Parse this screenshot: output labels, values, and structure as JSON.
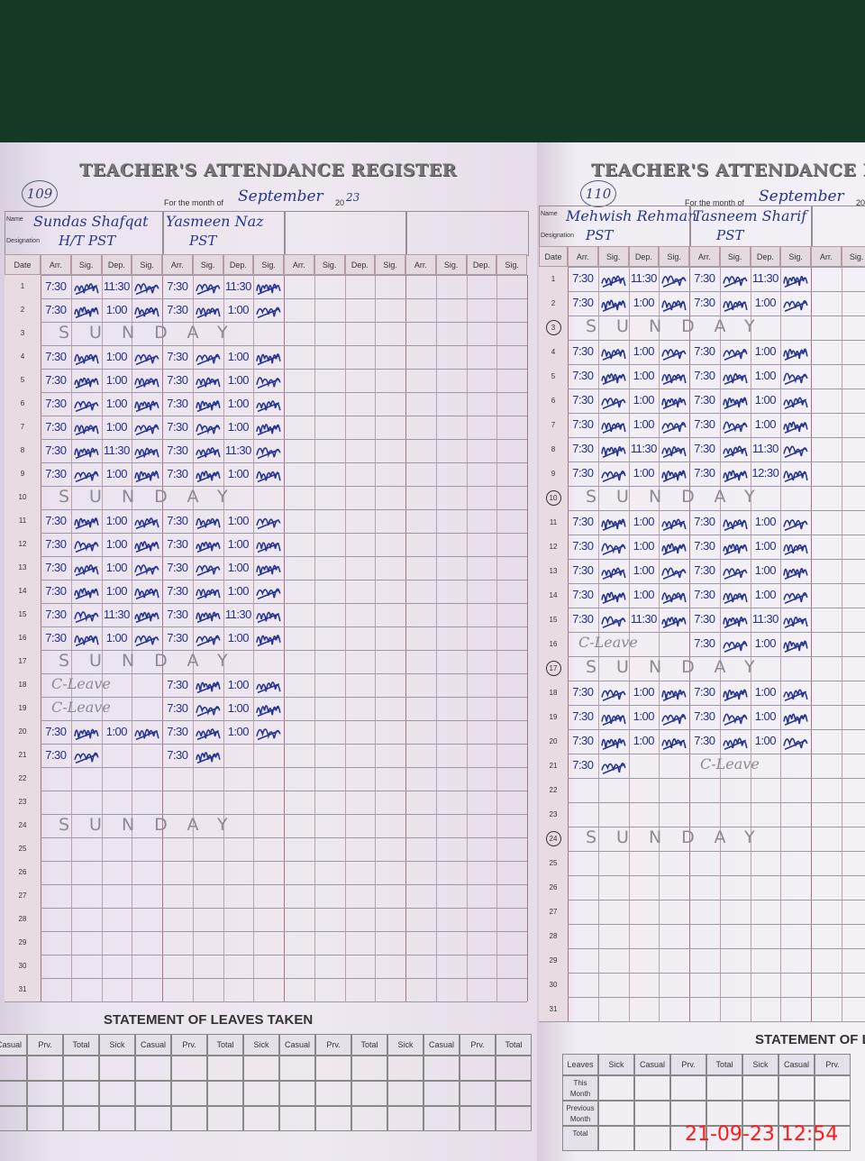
{
  "left_page": {
    "page_number": "109",
    "title": "TEACHER'S ATTENDANCE REGISTER",
    "month_label": "For the month of",
    "month": "September",
    "year_prefix": "20",
    "year": "23",
    "name_label": "Name",
    "designation_label": "Designation",
    "column_headers": [
      "Date",
      "Arr.",
      "Sig.",
      "Dep.",
      "Sig."
    ],
    "teachers": [
      {
        "name": "Sundas Shafqat",
        "designation": "H/T PST",
        "signature": "Sundas"
      },
      {
        "name": "Yasmeen Naz",
        "designation": "PST",
        "signature": "YN"
      }
    ],
    "rows": [
      {
        "date": "1",
        "entries": [
          [
            "7:30",
            "11:30"
          ],
          [
            "7:30",
            "11:30"
          ]
        ]
      },
      {
        "date": "2",
        "entries": [
          [
            "7:30",
            "1:00"
          ],
          [
            "7:30",
            "1:00"
          ]
        ]
      },
      {
        "date": "3",
        "sunday": "SUNDAY"
      },
      {
        "date": "4",
        "entries": [
          [
            "7:30",
            "1:00"
          ],
          [
            "7:30",
            "1:00"
          ]
        ]
      },
      {
        "date": "5",
        "entries": [
          [
            "7:30",
            "1:00"
          ],
          [
            "7:30",
            "1:00"
          ]
        ]
      },
      {
        "date": "6",
        "entries": [
          [
            "7:30",
            "1:00"
          ],
          [
            "7:30",
            "1:00"
          ]
        ]
      },
      {
        "date": "7",
        "entries": [
          [
            "7:30",
            "1:00"
          ],
          [
            "7:30",
            "1:00"
          ]
        ]
      },
      {
        "date": "8",
        "entries": [
          [
            "7:30",
            "11:30"
          ],
          [
            "7:30",
            "11:30"
          ]
        ]
      },
      {
        "date": "9",
        "entries": [
          [
            "7:30",
            "1:00"
          ],
          [
            "7:30",
            "1:00"
          ]
        ]
      },
      {
        "date": "10",
        "sunday": "SUNDAY"
      },
      {
        "date": "11",
        "entries": [
          [
            "7:30",
            "1:00"
          ],
          [
            "7:30",
            "1:00"
          ]
        ]
      },
      {
        "date": "12",
        "entries": [
          [
            "7:30",
            "1:00"
          ],
          [
            "7:30",
            "1:00"
          ]
        ]
      },
      {
        "date": "13",
        "entries": [
          [
            "7:30",
            "1:00"
          ],
          [
            "7:30",
            "1:00"
          ]
        ]
      },
      {
        "date": "14",
        "entries": [
          [
            "7:30",
            "1:00"
          ],
          [
            "7:30",
            "1:00"
          ]
        ]
      },
      {
        "date": "15",
        "entries": [
          [
            "7:30",
            "11:30"
          ],
          [
            "7:30",
            "11:30"
          ]
        ]
      },
      {
        "date": "16",
        "entries": [
          [
            "7:30",
            "1:00"
          ],
          [
            "7:30",
            "1:00"
          ]
        ]
      },
      {
        "date": "17",
        "sunday": "SUNDAY"
      },
      {
        "date": "18",
        "entries": [
          "C-Leave",
          [
            "7:30",
            "1:00"
          ]
        ]
      },
      {
        "date": "19",
        "entries": [
          "C-Leave",
          [
            "7:30",
            "1:00"
          ]
        ]
      },
      {
        "date": "20",
        "entries": [
          [
            "7:30",
            "1:00"
          ],
          [
            "7:30",
            "1:00"
          ]
        ]
      },
      {
        "date": "21",
        "entries": [
          [
            "7:30",
            ""
          ],
          [
            "7:30",
            ""
          ]
        ]
      },
      {
        "date": "22"
      },
      {
        "date": "23"
      },
      {
        "date": "24",
        "sunday": "SUNDAY"
      },
      {
        "date": "25"
      },
      {
        "date": "26"
      },
      {
        "date": "27"
      },
      {
        "date": "28"
      },
      {
        "date": "29"
      },
      {
        "date": "30"
      },
      {
        "date": "31"
      }
    ],
    "leaves": {
      "title": "STATEMENT OF LEAVES TAKEN",
      "headers": [
        "Casual",
        "Prv.",
        "Total",
        "Sick",
        "Casual",
        "Prv.",
        "Total",
        "Sick",
        "Casual",
        "Prv.",
        "Total",
        "Sick",
        "Casual",
        "Prv.",
        "Total"
      ]
    }
  },
  "right_page": {
    "page_number": "110",
    "title": "TEACHER'S ATTENDANCE REGISTER",
    "month_label": "For the month of",
    "month": "September",
    "year_prefix": "20",
    "name_label": "Name",
    "designation_label": "Designation",
    "column_headers": [
      "Date",
      "Arr.",
      "Sig.",
      "Dep.",
      "Sig."
    ],
    "teachers": [
      {
        "name": "Mehwish Rehman",
        "designation": "PST",
        "signature": "Mehwish"
      },
      {
        "name": "Tasneem Sharif",
        "designation": "PST",
        "signature": "Tasneem"
      }
    ],
    "rows": [
      {
        "date": "1",
        "entries": [
          [
            "7:30",
            "11:30"
          ],
          [
            "7:30",
            "11:30"
          ]
        ]
      },
      {
        "date": "2",
        "entries": [
          [
            "7:30",
            "1:00"
          ],
          [
            "7:30",
            "1:00"
          ]
        ]
      },
      {
        "date": "3",
        "sunday": "SUNDAY",
        "circled": true
      },
      {
        "date": "4",
        "entries": [
          [
            "7:30",
            "1:00"
          ],
          [
            "7:30",
            "1:00"
          ]
        ]
      },
      {
        "date": "5",
        "entries": [
          [
            "7:30",
            "1:00"
          ],
          [
            "7:30",
            "1:00"
          ]
        ]
      },
      {
        "date": "6",
        "entries": [
          [
            "7:30",
            "1:00"
          ],
          [
            "7:30",
            "1:00"
          ]
        ]
      },
      {
        "date": "7",
        "entries": [
          [
            "7:30",
            "1:00"
          ],
          [
            "7:30",
            "1:00"
          ]
        ]
      },
      {
        "date": "8",
        "entries": [
          [
            "7:30",
            "11:30"
          ],
          [
            "7:30",
            "11:30"
          ]
        ]
      },
      {
        "date": "9",
        "entries": [
          [
            "7:30",
            "1:00"
          ],
          [
            "7:30",
            "12:30"
          ]
        ]
      },
      {
        "date": "10",
        "sunday": "SUNDAY",
        "circled": true
      },
      {
        "date": "11",
        "entries": [
          [
            "7:30",
            "1:00"
          ],
          [
            "7:30",
            "1:00"
          ]
        ]
      },
      {
        "date": "12",
        "entries": [
          [
            "7:30",
            "1:00"
          ],
          [
            "7:30",
            "1:00"
          ]
        ]
      },
      {
        "date": "13",
        "entries": [
          [
            "7:30",
            "1:00"
          ],
          [
            "7:30",
            "1:00"
          ]
        ]
      },
      {
        "date": "14",
        "entries": [
          [
            "7:30",
            "1:00"
          ],
          [
            "7:30",
            "1:00"
          ]
        ]
      },
      {
        "date": "15",
        "entries": [
          [
            "7:30",
            "11:30"
          ],
          [
            "7:30",
            "11:30"
          ]
        ]
      },
      {
        "date": "16",
        "entries": [
          "C-Leave",
          [
            "7:30",
            "1:00"
          ]
        ]
      },
      {
        "date": "17",
        "sunday": "SUNDAY",
        "circled": true
      },
      {
        "date": "18",
        "entries": [
          [
            "7:30",
            "1:00"
          ],
          [
            "7:30",
            "1:00"
          ]
        ]
      },
      {
        "date": "19",
        "entries": [
          [
            "7:30",
            "1:00"
          ],
          [
            "7:30",
            "1:00"
          ]
        ]
      },
      {
        "date": "20",
        "entries": [
          [
            "7:30",
            "1:00"
          ],
          [
            "7:30",
            "1:00"
          ]
        ]
      },
      {
        "date": "21",
        "entries": [
          [
            "7:30",
            ""
          ],
          "C-Leave"
        ]
      },
      {
        "date": "22"
      },
      {
        "date": "23"
      },
      {
        "date": "24",
        "sunday": "SUNDAY",
        "circled": true
      },
      {
        "date": "25"
      },
      {
        "date": "26"
      },
      {
        "date": "27"
      },
      {
        "date": "28"
      },
      {
        "date": "29"
      },
      {
        "date": "30"
      },
      {
        "date": "31"
      }
    ],
    "leaves": {
      "title": "STATEMENT OF LEAVES TAKEN",
      "headers": [
        "Leaves",
        "Sick",
        "Casual",
        "Prv.",
        "Total",
        "Sick",
        "Casual",
        "Prv."
      ],
      "row_labels": [
        "This Month",
        "Previous Month",
        "Total"
      ]
    }
  },
  "timestamp": "21-09-23  12:54",
  "colors": {
    "ink": "#27368f",
    "pencil": "#8d8893",
    "timestamp": "#ff1a1a"
  }
}
